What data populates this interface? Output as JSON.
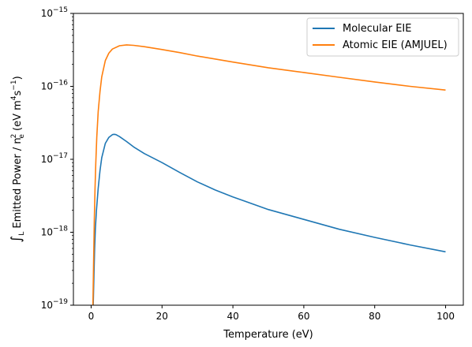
{
  "chart_data": {
    "type": "line",
    "xlabel": "Temperature (eV)",
    "ylabel_integral": "∫",
    "ylabel_integral_sub": "L",
    "ylabel_text": " Emitted Power / n",
    "ylabel_n_sup": "2",
    "ylabel_n_sub": "e",
    "ylabel_units_open": " (eV m",
    "ylabel_m_sup": "4",
    "ylabel_s": "s",
    "ylabel_s_sup": "−1",
    "ylabel_close": ")",
    "xlim": [
      -5,
      105
    ],
    "ylim": [
      1e-19,
      1e-15
    ],
    "yscale": "log",
    "x_ticks": [
      {
        "value": 0,
        "label": "0"
      },
      {
        "value": 20,
        "label": "20"
      },
      {
        "value": 40,
        "label": "40"
      },
      {
        "value": 60,
        "label": "60"
      },
      {
        "value": 80,
        "label": "80"
      },
      {
        "value": 100,
        "label": "100"
      }
    ],
    "y_ticks": [
      {
        "value": 1e-19,
        "base": "10",
        "exp": "−19"
      },
      {
        "value": 1e-18,
        "base": "10",
        "exp": "−18"
      },
      {
        "value": 1e-17,
        "base": "10",
        "exp": "−17"
      },
      {
        "value": 1e-16,
        "base": "10",
        "exp": "−16"
      },
      {
        "value": 1e-15,
        "base": "10",
        "exp": "−15"
      }
    ],
    "legend_position": "top-right",
    "grid": false,
    "series": [
      {
        "name": "Molecular EIE",
        "color": "#1f77b4",
        "x": [
          0.6,
          0.8,
          1.0,
          1.2,
          1.5,
          2.0,
          2.5,
          3,
          4,
          5,
          6,
          6.5,
          7,
          8,
          10,
          12,
          15,
          20,
          25,
          30,
          35,
          40,
          50,
          60,
          70,
          80,
          90,
          100
        ],
        "y": [
          1e-19,
          2.5e-19,
          6e-19,
          1.1e-18,
          2e-18,
          4e-18,
          7e-18,
          1.05e-17,
          1.65e-17,
          2e-17,
          2.18e-17,
          2.2e-17,
          2.18e-17,
          2.05e-17,
          1.75e-17,
          1.48e-17,
          1.2e-17,
          9e-18,
          6.6e-18,
          4.9e-18,
          3.8e-18,
          3.05e-18,
          2.05e-18,
          1.5e-18,
          1.1e-18,
          8.5e-19,
          6.7e-19,
          5.4e-19
        ]
      },
      {
        "name": "Atomic EIE (AMJUEL)",
        "color": "#ff7f0e",
        "x": [
          0.5,
          0.7,
          0.9,
          1.1,
          1.3,
          1.6,
          2.0,
          2.5,
          3,
          4,
          5,
          6,
          8,
          10,
          12,
          15,
          20,
          25,
          30,
          40,
          50,
          60,
          70,
          80,
          90,
          100
        ],
        "y": [
          1e-19,
          4e-19,
          1.5e-18,
          4e-18,
          8.5e-18,
          2e-17,
          4.5e-17,
          8.5e-17,
          1.35e-16,
          2.25e-16,
          2.85e-16,
          3.25e-16,
          3.6e-16,
          3.7e-16,
          3.65e-16,
          3.5e-16,
          3.2e-16,
          2.9e-16,
          2.6e-16,
          2.15e-16,
          1.8e-16,
          1.55e-16,
          1.33e-16,
          1.15e-16,
          1e-16,
          8.9e-17
        ]
      }
    ]
  }
}
